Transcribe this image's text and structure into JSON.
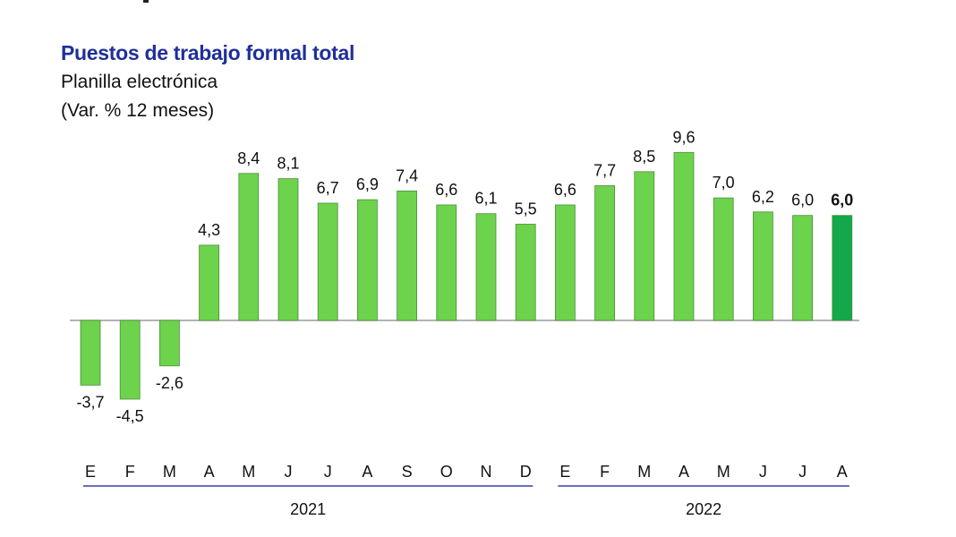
{
  "chart_data": {
    "type": "bar",
    "title": "Puestos de trabajo formal total",
    "subtitle": "Planilla electrónica",
    "unit_label": "(Var. % 12 meses)",
    "categories": [
      "E",
      "F",
      "M",
      "A",
      "M",
      "J",
      "J",
      "A",
      "S",
      "O",
      "N",
      "D",
      "E",
      "F",
      "M",
      "A",
      "M",
      "J",
      "J",
      "A"
    ],
    "value_labels": [
      "-3,7",
      "-4,5",
      "-2,6",
      "4,3",
      "8,4",
      "8,1",
      "6,7",
      "6,9",
      "7,4",
      "6,6",
      "6,1",
      "5,5",
      "6,6",
      "7,7",
      "8,5",
      "9,6",
      "7,0",
      "6,2",
      "6,0",
      "6,0"
    ],
    "values": [
      -3.7,
      -4.5,
      -2.6,
      4.3,
      8.4,
      8.1,
      6.7,
      6.9,
      7.4,
      6.6,
      6.1,
      5.5,
      6.6,
      7.7,
      8.5,
      9.6,
      7.0,
      6.2,
      6.0,
      6.0
    ],
    "years": [
      {
        "label": "2021",
        "start": 0,
        "end": 11
      },
      {
        "label": "2022",
        "start": 12,
        "end": 19
      }
    ],
    "highlight_index": 19,
    "colors": {
      "bar": "#6dd24c",
      "bar_highlight": "#13a84a",
      "bar_stroke": "#4e8f3a",
      "axis": "#9a9a9a",
      "year_line": "#3b3fb0",
      "text": "#111111"
    },
    "grid": false
  }
}
